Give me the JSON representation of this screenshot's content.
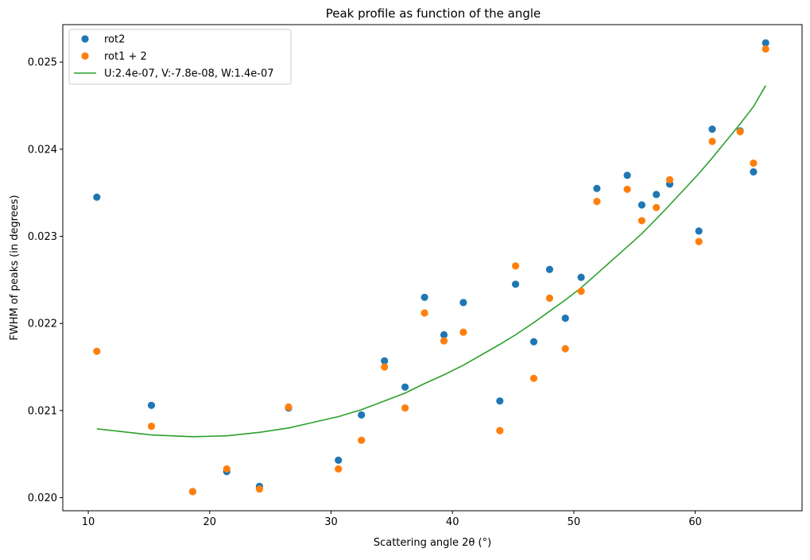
{
  "chart_data": {
    "type": "scatter",
    "title": "Peak profile as function of the angle",
    "xlabel": "Scattering angle 2θ (°)",
    "ylabel": "FWHM of peaks (in degrees)",
    "xlim": [
      7.9,
      68.8
    ],
    "ylim": [
      0.01985,
      0.02543
    ],
    "xticks": [
      10,
      20,
      30,
      40,
      50,
      60
    ],
    "yticks": [
      0.02,
      0.021,
      0.022,
      0.023,
      0.024,
      0.025
    ],
    "ytick_labels": [
      "0.020",
      "0.021",
      "0.022",
      "0.023",
      "0.024",
      "0.025"
    ],
    "grid": false,
    "legend_position": "top-left",
    "series": [
      {
        "name": "rot2",
        "kind": "scatter",
        "color": "#1f77b4",
        "x": [
          10.7,
          15.2,
          18.6,
          21.4,
          24.1,
          26.5,
          30.6,
          32.5,
          34.4,
          36.1,
          37.7,
          39.3,
          40.9,
          43.9,
          45.2,
          46.7,
          48.0,
          49.3,
          50.6,
          51.9,
          54.4,
          55.6,
          56.8,
          57.9,
          60.3,
          61.4,
          63.7,
          64.8,
          65.8
        ],
        "y": [
          0.02345,
          0.02106,
          0.02007,
          0.0203,
          0.02013,
          0.02103,
          0.02043,
          0.02095,
          0.02157,
          0.02127,
          0.0223,
          0.02187,
          0.02224,
          0.02111,
          0.02245,
          0.02179,
          0.02262,
          0.02206,
          0.02253,
          0.02355,
          0.0237,
          0.02336,
          0.02348,
          0.0236,
          0.02306,
          0.02423,
          0.02421,
          0.02374,
          0.02522
        ]
      },
      {
        "name": "rot1 + 2",
        "kind": "scatter",
        "color": "#ff7f0e",
        "x": [
          10.7,
          15.2,
          18.6,
          21.4,
          24.1,
          26.5,
          30.6,
          32.5,
          34.4,
          36.1,
          37.7,
          39.3,
          40.9,
          43.9,
          45.2,
          46.7,
          48.0,
          49.3,
          50.6,
          51.9,
          54.4,
          55.6,
          56.8,
          57.9,
          60.3,
          61.4,
          63.7,
          64.8,
          65.8
        ],
        "y": [
          0.02168,
          0.02082,
          0.02007,
          0.02033,
          0.0201,
          0.02104,
          0.02033,
          0.02066,
          0.0215,
          0.02103,
          0.02212,
          0.0218,
          0.0219,
          0.02077,
          0.02266,
          0.02137,
          0.02229,
          0.02171,
          0.02237,
          0.0234,
          0.02354,
          0.02318,
          0.02333,
          0.02365,
          0.02294,
          0.02409,
          0.0242,
          0.02384,
          0.02515
        ]
      },
      {
        "name": "U:2.4e-07, V:-7.8e-08, W:1.4e-07",
        "kind": "line",
        "color": "#2ca02c",
        "x": [
          10.7,
          15.2,
          18.6,
          21.4,
          24.1,
          26.5,
          30.6,
          32.5,
          34.4,
          36.1,
          37.7,
          39.3,
          40.9,
          43.9,
          45.2,
          46.7,
          48.0,
          49.3,
          50.6,
          51.9,
          54.4,
          55.6,
          56.8,
          57.9,
          60.3,
          61.4,
          63.7,
          64.8,
          65.8
        ],
        "y": [
          0.02079,
          0.02072,
          0.0207,
          0.02071,
          0.02075,
          0.0208,
          0.02093,
          0.02101,
          0.02111,
          0.0212,
          0.02131,
          0.02141,
          0.02152,
          0.02176,
          0.02187,
          0.02201,
          0.02214,
          0.02227,
          0.02241,
          0.02257,
          0.02288,
          0.02303,
          0.0232,
          0.02336,
          0.02372,
          0.0239,
          0.02429,
          0.02449,
          0.02473
        ]
      }
    ]
  }
}
